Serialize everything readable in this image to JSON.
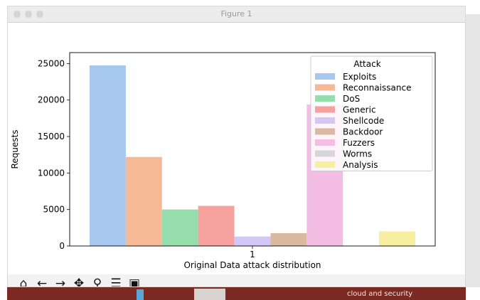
{
  "window": {
    "title": "Figure 1"
  },
  "toolbar": {
    "icons": [
      "home-icon",
      "back-arrow-icon",
      "forward-arrow-icon",
      "pan-icon",
      "zoom-icon",
      "configure-icon",
      "save-icon"
    ]
  },
  "taskbar": {
    "text": "cloud and security"
  },
  "colors": {
    "background": "#ffffff"
  },
  "chart_data": {
    "type": "bar",
    "xlabel": "Original Data attack distribution",
    "ylabel": "Requests",
    "categories": [
      "1"
    ],
    "ylim": [
      0,
      26500
    ],
    "yticks": [
      0,
      5000,
      10000,
      15000,
      20000,
      25000
    ],
    "legend": {
      "title": "Attack",
      "placement": "top-right"
    },
    "series": [
      {
        "name": "Exploits",
        "value": 24750,
        "color": "#a6c8ee"
      },
      {
        "name": "Reconnaissance",
        "value": 12200,
        "color": "#f6b995"
      },
      {
        "name": "DoS",
        "value": 5000,
        "color": "#96ddae"
      },
      {
        "name": "Generic",
        "value": 5500,
        "color": "#f5a19d"
      },
      {
        "name": "Shellcode",
        "value": 1300,
        "color": "#d3c7f7"
      },
      {
        "name": "Backdoor",
        "value": 1750,
        "color": "#d9b99f"
      },
      {
        "name": "Fuzzers",
        "value": 19400,
        "color": "#f4bde4"
      },
      {
        "name": "Worms",
        "value": 0,
        "color": "#d7d7d7"
      },
      {
        "name": "Analysis",
        "value": 2000,
        "color": "#f8ee9f"
      }
    ]
  }
}
